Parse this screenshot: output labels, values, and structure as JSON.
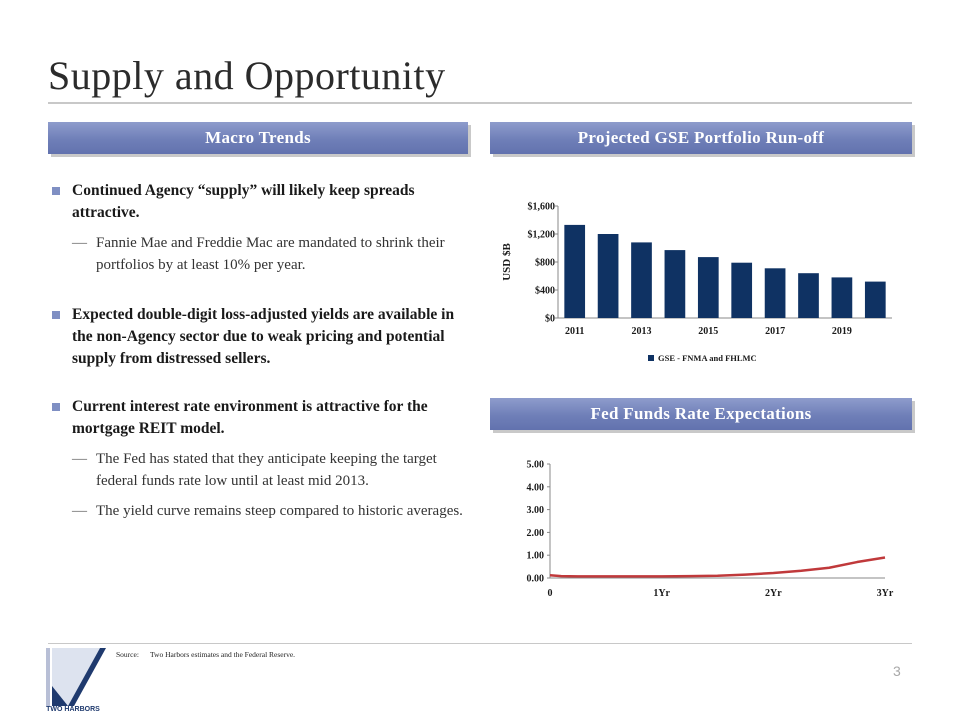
{
  "slide": {
    "title": "Supply and Opportunity",
    "page_number": "3"
  },
  "macro_trends": {
    "heading": "Macro Trends",
    "bullets": [
      {
        "text": "Continued Agency “supply” will likely keep spreads attractive.",
        "subs": [
          "Fannie Mae and Freddie Mac are mandated to shrink their portfolios by at least 10% per year."
        ]
      },
      {
        "text": "Expected double-digit loss-adjusted yields are available in the non-Agency sector due to weak pricing and potential supply from distressed sellers.",
        "subs": []
      },
      {
        "text": "Current interest rate environment is attractive for the mortgage REIT model.",
        "subs": [
          "The Fed has stated that they anticipate keeping the target federal funds rate low until at least mid 2013.",
          "The yield curve remains steep compared to historic averages."
        ]
      }
    ]
  },
  "gse_chart": {
    "heading": "Projected GSE Portfolio Run-off"
  },
  "fed_chart": {
    "heading": "Fed Funds Rate Expectations"
  },
  "footer": {
    "source_label": "Source:",
    "source_text": "Two Harbors estimates and the Federal Reserve.",
    "logo_text": "TWO HARBORS"
  },
  "colors": {
    "bar": "#0f3263",
    "line": "#c0393b",
    "section_bar": "#7483bc",
    "bullet": "#7f8fc3"
  },
  "chart_data": [
    {
      "type": "bar",
      "categories": [
        "2011",
        "2012",
        "2013",
        "2014",
        "2015",
        "2016",
        "2017",
        "2018",
        "2019",
        "2020"
      ],
      "x_tick_labels": [
        "2011",
        "",
        "2013",
        "",
        "2015",
        "",
        "2017",
        "",
        "2019",
        ""
      ],
      "series": [
        {
          "name": "GSE - FNMA and FHLMC",
          "values": [
            1330,
            1200,
            1080,
            970,
            870,
            790,
            710,
            640,
            580,
            520
          ]
        }
      ],
      "ylabel": "USD $B",
      "ylim": [
        0,
        1600
      ],
      "yticks": [
        0,
        400,
        800,
        1200,
        1600
      ],
      "ytick_labels": [
        "$0",
        "$400",
        "$800",
        "$1,200",
        "$1,600"
      ],
      "legend": "bottom",
      "grid": false
    },
    {
      "type": "line",
      "x": [
        0,
        0.1,
        0.25,
        0.5,
        0.75,
        1.0,
        1.25,
        1.5,
        1.75,
        2.0,
        2.25,
        2.5,
        2.75,
        3.0
      ],
      "series": [
        {
          "values": [
            0.12,
            0.08,
            0.07,
            0.07,
            0.07,
            0.07,
            0.08,
            0.1,
            0.15,
            0.22,
            0.32,
            0.45,
            0.7,
            0.9
          ]
        }
      ],
      "x_ticks": [
        0,
        1,
        2,
        3
      ],
      "x_tick_labels": [
        "0",
        "1Yr",
        "2Yr",
        "3Yr"
      ],
      "xlim": [
        0,
        3
      ],
      "ylim": [
        0,
        5
      ],
      "yticks": [
        0,
        1,
        2,
        3,
        4,
        5
      ],
      "ytick_labels": [
        "0.00",
        "1.00",
        "2.00",
        "3.00",
        "4.00",
        "5.00"
      ],
      "legend": "none",
      "grid": false
    }
  ]
}
